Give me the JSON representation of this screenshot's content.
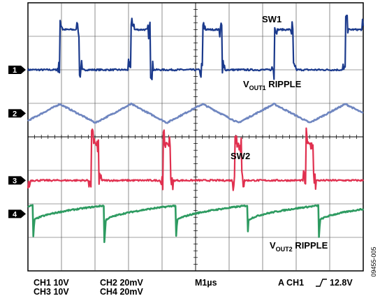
{
  "chart_data": {
    "type": "line",
    "title": "",
    "xlabel": "",
    "ylabel": "",
    "divisions": {
      "x": 10,
      "y": 8
    },
    "xlim": [
      0,
      10
    ],
    "ylim": [
      0,
      8
    ],
    "grid": true,
    "timebase": "M1µs",
    "trigger": "A  CH1  ↑  12.8V",
    "channel_settings": [
      {
        "channel": "CH1",
        "scale": "10V"
      },
      {
        "channel": "CH2",
        "scale": "20mV"
      },
      {
        "channel": "CH3",
        "scale": "10V"
      },
      {
        "channel": "CH4",
        "scale": "20mV"
      }
    ],
    "series": [
      {
        "name": "SW1",
        "marker": "1",
        "color": "#1b3a8c",
        "kind": "switch",
        "baseline_div": 6.0,
        "high_div": 7.2,
        "period_div": 2.13,
        "first_rise_div": 0.95,
        "duty": 0.27
      },
      {
        "name": "VOUT1 RIPPLE",
        "marker": "2",
        "color": "#6f86c0",
        "kind": "triangle",
        "baseline_div": 4.7,
        "amplitude_div": 0.28,
        "period_div": 2.13,
        "first_peak_div": 0.95
      },
      {
        "name": "SW2",
        "marker": "3",
        "color": "#e0304f",
        "kind": "switch",
        "baseline_div": 2.7,
        "high_div": 3.8,
        "period_div": 2.13,
        "first_rise_div": 1.9,
        "duty": 0.1
      },
      {
        "name": "VOUT2 RIPPLE",
        "marker": "4",
        "color": "#2e9b61",
        "kind": "sawtooth",
        "baseline_div": 1.7,
        "amplitude_div": 0.25,
        "period_div": 2.13,
        "first_drop_div": 0.15
      }
    ],
    "annotations": [
      {
        "text": "SW1"
      },
      {
        "text": "V",
        "sub": "OUT1",
        "suffix": " RIPPLE"
      },
      {
        "text": "SW2"
      },
      {
        "text": "V",
        "sub": "OUT2",
        "suffix": " RIPPLE"
      }
    ]
  },
  "status_bar": {
    "row1": {
      "ch1": "CH1   10V",
      "ch2": "CH2   20mV",
      "time": "M1µs",
      "trigger_source": "A  CH1",
      "trigger_level": "12.8V"
    },
    "row2": {
      "ch3": "CH3   10V",
      "ch4": "CH4   20mV"
    }
  },
  "figure_id": "09455-005"
}
